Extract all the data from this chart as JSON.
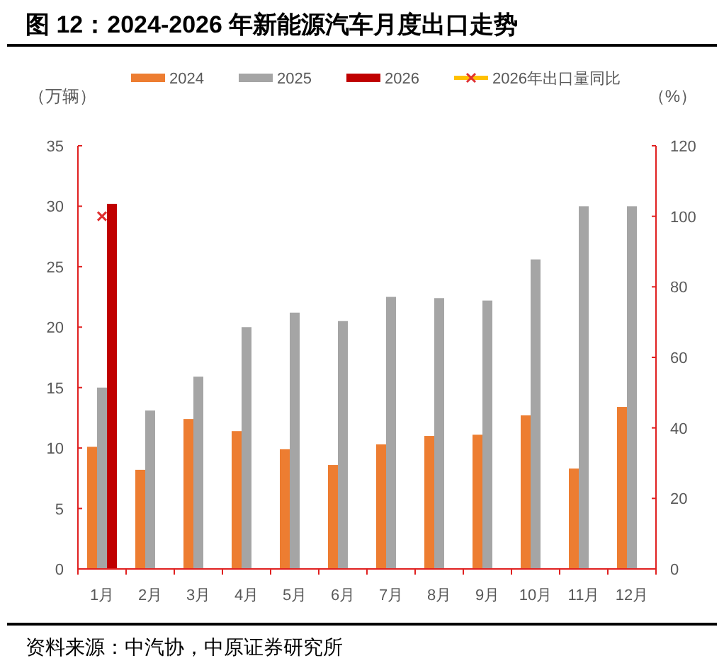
{
  "chart_data": {
    "type": "bar",
    "title": "图 12：2024-2026 年新能源汽车月度出口走势",
    "categories": [
      "1月",
      "2月",
      "3月",
      "4月",
      "5月",
      "6月",
      "7月",
      "8月",
      "9月",
      "10月",
      "11月",
      "12月"
    ],
    "series": [
      {
        "name": "2024",
        "color": "#ed7d31",
        "values": [
          10.1,
          8.2,
          12.4,
          11.4,
          9.9,
          8.6,
          10.3,
          11.0,
          11.1,
          12.7,
          8.3,
          13.4
        ]
      },
      {
        "name": "2025",
        "color": "#a5a5a5",
        "values": [
          15.0,
          13.1,
          15.9,
          20.0,
          21.2,
          20.5,
          22.5,
          22.4,
          22.2,
          25.6,
          30.0,
          30.0
        ]
      },
      {
        "name": "2026",
        "color": "#c00000",
        "values": [
          30.2,
          null,
          null,
          null,
          null,
          null,
          null,
          null,
          null,
          null,
          null,
          null
        ]
      },
      {
        "name": "2026年出口量同比",
        "type": "line",
        "axis": "y2",
        "color": "#e03030",
        "marker": "cross",
        "values": [
          100,
          null,
          null,
          null,
          null,
          null,
          null,
          null,
          null,
          null,
          null,
          null
        ]
      }
    ],
    "ylabel": "（万辆）",
    "y2label": "（%）",
    "ylim": [
      0,
      35
    ],
    "yticks": [
      0,
      5,
      10,
      15,
      20,
      25,
      30,
      35
    ],
    "y2lim": [
      0,
      120
    ],
    "y2ticks": [
      0,
      20,
      40,
      60,
      80,
      100,
      120
    ],
    "legend": "top",
    "grid": false,
    "annotations": [
      "资料来源：中汽协，中原证券研究所"
    ]
  }
}
